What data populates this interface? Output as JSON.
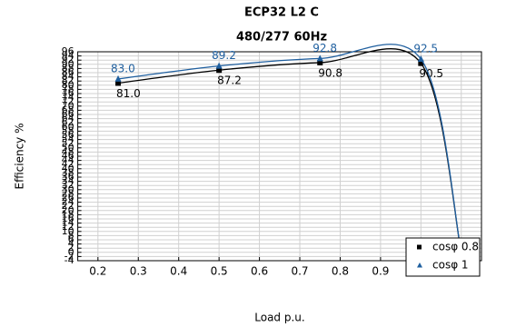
{
  "chart_data": {
    "type": "line",
    "title": "ECP32 L2 C",
    "subtitle": "480/277 60Hz",
    "x_label": "Load p.u.",
    "y_label": "Efficiency %",
    "x": [
      0.25,
      0.5,
      0.75,
      1.0,
      1.1
    ],
    "series": [
      {
        "name": "cosφ 0.8",
        "color": "#000000",
        "marker": "square",
        "values": [
          81.0,
          87.2,
          90.8,
          90.5,
          0.0
        ],
        "value_labels": [
          "81.0",
          "87.2",
          "90.8",
          "90.5",
          "0.0"
        ]
      },
      {
        "name": "cosφ 1",
        "color": "#1f5f9f",
        "marker": "triangle",
        "values": [
          83.0,
          89.2,
          92.8,
          92.5,
          0.0
        ],
        "value_labels": [
          "83.0",
          "89.2",
          "92.8",
          "92.5",
          null
        ]
      }
    ],
    "xlim": [
      0.15,
      1.15
    ],
    "xticks": [
      0.2,
      0.3,
      0.4,
      0.5,
      0.6,
      0.7,
      0.8,
      0.9,
      1.0,
      1.1
    ],
    "ylim": [
      -4,
      96
    ],
    "yticks": [
      -4,
      -2,
      0,
      2,
      4,
      6,
      8,
      10,
      12,
      14,
      16,
      18,
      20,
      22,
      24,
      26,
      28,
      30,
      32,
      34,
      36,
      38,
      40,
      42,
      44,
      46,
      48,
      50,
      52,
      54,
      56,
      58,
      60,
      62,
      64,
      66,
      68,
      70,
      72,
      74,
      76,
      78,
      80,
      82,
      84,
      86,
      88,
      90,
      92,
      94,
      96
    ],
    "grid": true,
    "legend": "lower right"
  }
}
